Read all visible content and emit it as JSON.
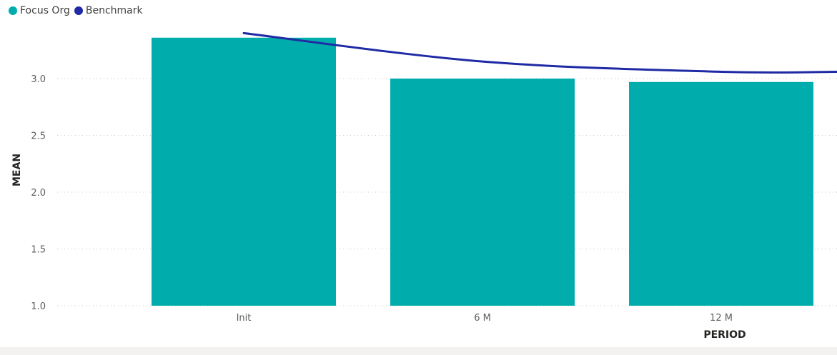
{
  "legend": {
    "items": [
      {
        "label": "Focus Org",
        "color": "#01ACAC"
      },
      {
        "label": "Benchmark",
        "color": "#1F2AA4"
      }
    ]
  },
  "chart_data": {
    "type": "bar",
    "categories": [
      "Init",
      "6 M",
      "12 M"
    ],
    "series": [
      {
        "name": "Focus Org",
        "type": "bar",
        "color": "#01ACAC",
        "values": [
          3.36,
          3.0,
          2.97
        ]
      },
      {
        "name": "Benchmark",
        "type": "line",
        "color": "#1F2AA4",
        "values": [
          3.4,
          3.15,
          3.06
        ]
      }
    ],
    "benchmark_line_end_value": 3.06,
    "xlabel": "PERIOD",
    "ylabel": "MEAN",
    "ylim": [
      1.0,
      3.4
    ],
    "yticks": [
      "1.0",
      "1.5",
      "2.0",
      "2.5",
      "3.0"
    ],
    "ytick_values": [
      1.0,
      1.5,
      2.0,
      2.5,
      3.0
    ],
    "grid": true,
    "legend_position": "top-left"
  }
}
